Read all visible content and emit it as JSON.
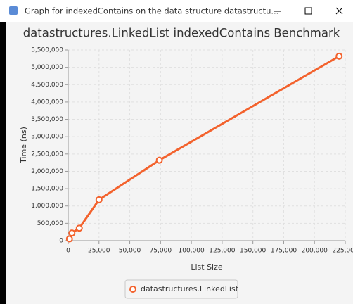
{
  "window": {
    "title": "Graph for indexedContains on the data structure datastructu..."
  },
  "chart_data": {
    "type": "line",
    "title": "datastructures.LinkedList indexedContains Benchmark",
    "x_label": "List Size",
    "y_label": "Time (ns)",
    "series": [
      {
        "name": "datastructures.LinkedList",
        "color": "#f3622d",
        "x": [
          1000,
          3000,
          9000,
          25000,
          74000,
          220000
        ],
        "values": [
          50000,
          220000,
          360000,
          1180000,
          2320000,
          5320000
        ]
      }
    ],
    "xlim": [
      0,
      225000
    ],
    "xticks": [
      0,
      {
        "value": 25000,
        "label": "25,000"
      },
      {
        "value": 50000,
        "label": "50,000"
      },
      {
        "value": 75000,
        "label": "75,000"
      },
      {
        "value": 100000,
        "label": "100,000"
      },
      {
        "value": 125000,
        "label": "125,000"
      },
      {
        "value": 150000,
        "label": "150,000"
      },
      {
        "value": 175000,
        "label": "175,000"
      },
      {
        "value": 200000,
        "label": "200,000"
      },
      {
        "value": 225000,
        "label": "225,000"
      }
    ],
    "ylim": [
      0,
      5500000
    ],
    "yticks": [
      0,
      {
        "value": 500000,
        "label": "500,000"
      },
      {
        "value": 1000000,
        "label": "1,000,000"
      },
      {
        "value": 1500000,
        "label": "1,500,000"
      },
      {
        "value": 2000000,
        "label": "2,000,000"
      },
      {
        "value": 2500000,
        "label": "2,500,000"
      },
      {
        "value": 3000000,
        "label": "3,000,000"
      },
      {
        "value": 3500000,
        "label": "3,500,000"
      },
      {
        "value": 4000000,
        "label": "4,000,000"
      },
      {
        "value": 4500000,
        "label": "4,500,000"
      },
      {
        "value": 5000000,
        "label": "5,000,000"
      },
      {
        "value": 5500000,
        "label": "5,500,000"
      }
    ],
    "grid": true,
    "legend": "bottom"
  }
}
